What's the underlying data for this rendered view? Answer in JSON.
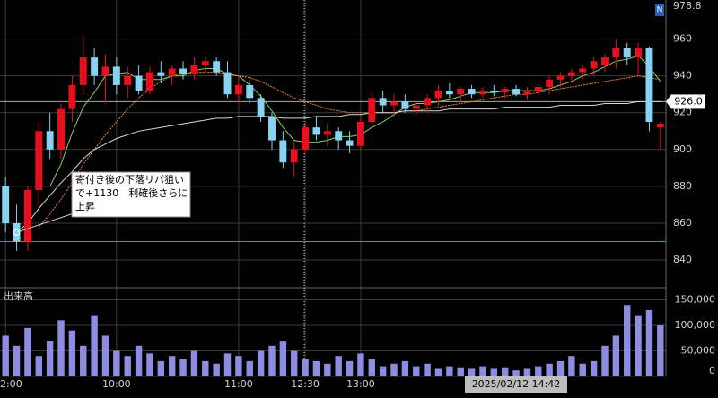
{
  "chart_data": {
    "type": "candlestick",
    "badge": "N",
    "categories": [
      "2:00",
      null,
      null,
      null,
      null,
      null,
      null,
      null,
      null,
      null,
      "10:00",
      null,
      null,
      null,
      null,
      null,
      null,
      null,
      null,
      null,
      null,
      "11:00",
      null,
      null,
      null,
      null,
      null,
      "12:30",
      null,
      null,
      null,
      null,
      "13:00",
      null,
      null,
      null,
      null,
      null,
      null,
      null,
      null,
      null,
      null,
      null,
      null,
      null,
      null,
      null,
      null,
      null,
      null,
      null,
      null,
      null,
      null,
      null,
      null,
      null,
      null,
      null
    ],
    "open": [
      880,
      860,
      850,
      878,
      910,
      900,
      922,
      935,
      950,
      940,
      945,
      935,
      940,
      932,
      942,
      940,
      944,
      941,
      946,
      948,
      942,
      930,
      935,
      928,
      918,
      905,
      893,
      900,
      912,
      908,
      910,
      905,
      902,
      915,
      928,
      924,
      926,
      922,
      924,
      928,
      932,
      930,
      933,
      930,
      932,
      931,
      933,
      930,
      932,
      934,
      938,
      940,
      942,
      944,
      946,
      950,
      955,
      950,
      955,
      912
    ],
    "high": [
      885,
      870,
      880,
      915,
      920,
      925,
      940,
      962,
      955,
      952,
      950,
      945,
      946,
      945,
      948,
      946,
      948,
      950,
      950,
      950,
      948,
      940,
      938,
      930,
      920,
      910,
      905,
      915,
      918,
      914,
      912,
      910,
      918,
      932,
      932,
      930,
      930,
      926,
      930,
      935,
      936,
      934,
      935,
      934,
      935,
      934,
      935,
      934,
      936,
      940,
      942,
      944,
      946,
      950,
      952,
      960,
      958,
      958,
      956,
      915
    ],
    "low": [
      855,
      845,
      845,
      870,
      895,
      895,
      915,
      930,
      935,
      925,
      930,
      928,
      930,
      930,
      936,
      935,
      938,
      938,
      942,
      940,
      928,
      925,
      925,
      915,
      900,
      890,
      885,
      898,
      905,
      902,
      900,
      898,
      900,
      912,
      920,
      918,
      920,
      918,
      920,
      924,
      928,
      926,
      928,
      928,
      929,
      928,
      929,
      927,
      928,
      930,
      934,
      936,
      938,
      940,
      942,
      944,
      946,
      940,
      910,
      900
    ],
    "close": [
      860,
      850,
      878,
      910,
      900,
      922,
      935,
      950,
      940,
      945,
      935,
      940,
      932,
      942,
      940,
      944,
      941,
      946,
      948,
      942,
      930,
      935,
      928,
      918,
      905,
      893,
      900,
      912,
      908,
      910,
      905,
      902,
      915,
      928,
      924,
      926,
      922,
      924,
      928,
      932,
      930,
      933,
      930,
      932,
      931,
      933,
      930,
      932,
      934,
      938,
      940,
      942,
      944,
      948,
      950,
      955,
      950,
      955,
      915,
      914
    ],
    "up_color": "#e8101e",
    "down_color": "#86d3f2",
    "ylim": [
      825.4,
      978.8
    ],
    "yticks": [
      840,
      860,
      880,
      900,
      920,
      940,
      960
    ],
    "moving_averages": [
      {
        "color": "#7fcf6a",
        "values": [
          null,
          null,
          null,
          null,
          880,
          892,
          909,
          923,
          931,
          940,
          941,
          942,
          938,
          938,
          938,
          940,
          940,
          943,
          944,
          944,
          941,
          940,
          935,
          929,
          921,
          912,
          905,
          904,
          904,
          905,
          907,
          907,
          908,
          912,
          915,
          919,
          923,
          925,
          925,
          926,
          927,
          929,
          931,
          931,
          931,
          932,
          932,
          932,
          932,
          933,
          935,
          937,
          940,
          942,
          945,
          948,
          949,
          951,
          945,
          937
        ]
      },
      {
        "color": "#e08a30",
        "values": [
          null,
          null,
          null,
          858,
          865,
          873,
          882,
          892,
          900,
          908,
          915,
          922,
          928,
          933,
          937,
          940,
          941,
          942,
          942,
          942,
          941,
          940,
          939,
          937,
          934,
          931,
          928,
          926,
          924,
          922,
          921,
          920,
          920,
          920,
          920,
          920,
          921,
          921,
          922,
          923,
          924,
          925,
          926,
          927,
          928,
          929,
          930,
          930,
          931,
          932,
          933,
          934,
          935,
          936,
          937,
          938,
          939,
          940,
          939,
          938
        ]
      },
      {
        "color": "#d8d8d8",
        "values": [
          null,
          855,
          860,
          868,
          875,
          882,
          888,
          895,
          900,
          903,
          906,
          908,
          910,
          911,
          912,
          913,
          914,
          915,
          916,
          917,
          917,
          918,
          918,
          918,
          918,
          917,
          917,
          917,
          918,
          918,
          918,
          919,
          919,
          920,
          920,
          920,
          921,
          921,
          921,
          921,
          922,
          922,
          922,
          922,
          922,
          923,
          923,
          923,
          923,
          923,
          924,
          924,
          924,
          924,
          925,
          925,
          925,
          926,
          926,
          926
        ]
      }
    ],
    "support_line": {
      "value": 850,
      "color": "#2fb52f"
    },
    "current_price": {
      "value": 926,
      "label": "926.0"
    },
    "annotation": {
      "lines": [
        "寄付き後の下落リバ狙い",
        "で+1130　利確後さらに",
        "上昇"
      ],
      "index": 1,
      "value": 855
    },
    "cursor_label": "2025/02/12 14:42",
    "volume": {
      "name": "出来高",
      "color": "#8c8ce0",
      "values": [
        80000,
        60000,
        95000,
        40000,
        70000,
        110000,
        90000,
        60000,
        120000,
        80000,
        50000,
        40000,
        60000,
        45000,
        30000,
        40000,
        35000,
        50000,
        30000,
        25000,
        45000,
        40000,
        30000,
        50000,
        60000,
        70000,
        50000,
        35000,
        30000,
        25000,
        40000,
        30000,
        45000,
        35000,
        20000,
        25000,
        30000,
        20000,
        25000,
        15000,
        20000,
        18000,
        15000,
        20000,
        15000,
        18000,
        12000,
        15000,
        20000,
        25000,
        30000,
        40000,
        25000,
        30000,
        60000,
        80000,
        140000,
        120000,
        130000,
        100000
      ],
      "ylim": [
        0,
        172000
      ],
      "yticks": [
        {
          "value": 0,
          "label": "0"
        },
        {
          "value": 50000,
          "label": "50,000"
        },
        {
          "value": 100000,
          "label": "100,000"
        },
        {
          "value": 150000,
          "label": "150,000"
        }
      ]
    }
  }
}
